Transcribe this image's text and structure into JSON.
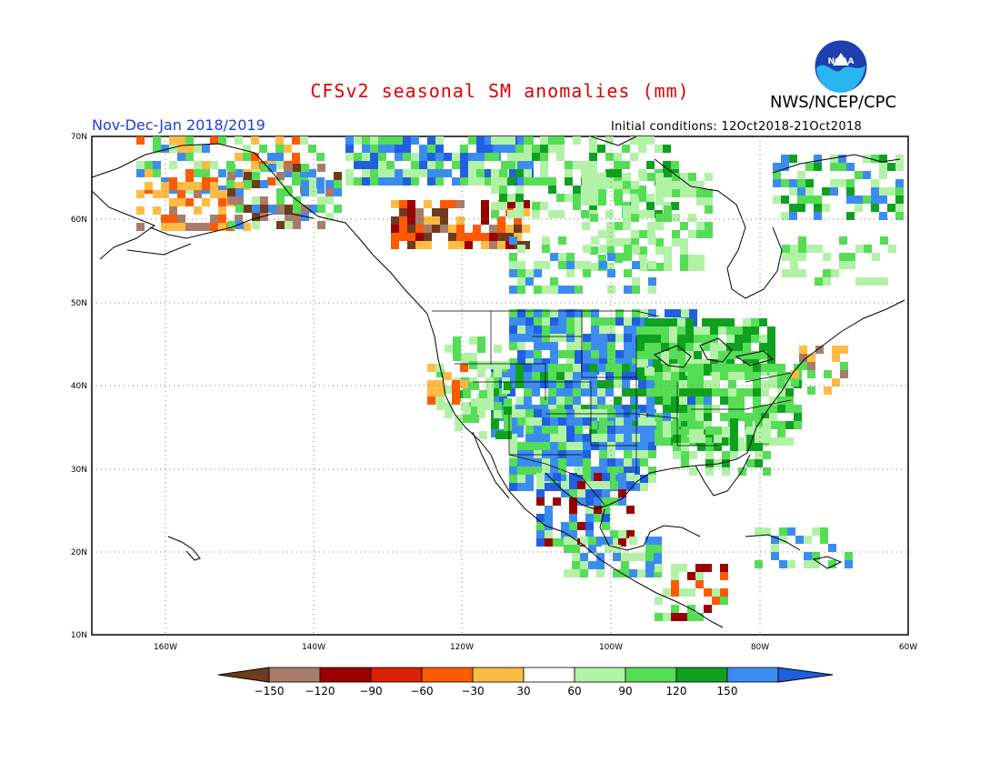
{
  "header": {
    "title": "CFSv2 seasonal SM anomalies (mm)",
    "organization": "NWS/NCEP/CPC",
    "season": "Nov-Dec-Jan 2018/2019",
    "initial_conditions": "Initial conditions: 12Oct2018-21Oct2018",
    "logo_text": "NOAA"
  },
  "map": {
    "lat_labels": [
      "70N",
      "60N",
      "50N",
      "40N",
      "30N",
      "20N",
      "10N"
    ],
    "lon_labels": [
      "160W",
      "140W",
      "120W",
      "100W",
      "80W",
      "60W"
    ],
    "lon_range": [
      -170,
      -60
    ],
    "lat_range": [
      10,
      70
    ],
    "grid": "dotted"
  },
  "colorbar": {
    "labels": [
      "-150",
      "-120",
      "-90",
      "-60",
      "-30",
      "30",
      "60",
      "90",
      "120",
      "150"
    ],
    "colors": [
      "#6e3b1e",
      "#a87c6a",
      "#9a0000",
      "#d92000",
      "#ff5a00",
      "#ffbb44",
      "#ffffff",
      "#b2f2a6",
      "#55dd55",
      "#10a020",
      "#3c8cf0",
      "#2060e0"
    ]
  }
}
